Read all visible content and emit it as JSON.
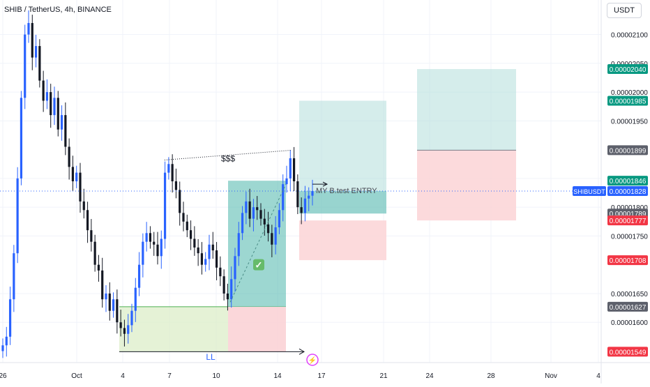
{
  "header": {
    "title": "SHIB / TetherUS, 4h, BINANCE",
    "currency_button": "USDT"
  },
  "colors": {
    "up": "#2962ff",
    "down": "#131722",
    "grid": "#f0f3fa",
    "target_fill": "#b2dfdb",
    "stop_fill": "#fbd3d6",
    "trade_fill": "#4db6ac",
    "demand_fill": "#dcedc8",
    "badge_green": "#089981",
    "badge_red": "#f23645",
    "badge_gray": "#5d606b",
    "badge_blue": "#2962ff"
  },
  "chart_data": {
    "type": "candlestick",
    "y_tick_labels": [
      "0.00002100",
      "0.00002050",
      "0.00002000",
      "0.00001950",
      "0.00001850",
      "0.00001800",
      "0.00001750",
      "0.00001650",
      "0.00001600"
    ],
    "y_tick_values": [
      2.1e-05,
      2.05e-05,
      2e-05,
      1.95e-05,
      1.85e-05,
      1.8e-05,
      1.75e-05,
      1.65e-05,
      1.6e-05
    ],
    "x_tick_labels": [
      "26",
      "Oct",
      "4",
      "7",
      "10",
      "14",
      "17",
      "21",
      "24",
      "28",
      "Nov",
      "4"
    ],
    "ylim": [
      1.53e-05,
      2.16e-05
    ],
    "annotations": {
      "liquidity": "$$$",
      "low": "LL",
      "entry": "MY B.test ENTRY"
    },
    "price_badges": [
      {
        "text": "0.00002040",
        "value": 2.04e-05,
        "kind": "green"
      },
      {
        "text": "0.00001985",
        "value": 1.985e-05,
        "kind": "green"
      },
      {
        "text": "0.00001899",
        "value": 1.899e-05,
        "kind": "gray"
      },
      {
        "text": "0.00001846",
        "value": 1.846e-05,
        "kind": "green"
      },
      {
        "text": "0.00001828",
        "value": 1.828e-05,
        "kind": "blue"
      },
      {
        "text": "0.00001789",
        "value": 1.789e-05,
        "kind": "gray"
      },
      {
        "text": "0.00001777",
        "value": 1.777e-05,
        "kind": "red"
      },
      {
        "text": "0.00001708",
        "value": 1.708e-05,
        "kind": "red"
      },
      {
        "text": "0.00001627",
        "value": 1.627e-05,
        "kind": "gray"
      },
      {
        "text": "0.00001549",
        "value": 1.549e-05,
        "kind": "red"
      }
    ],
    "symbol_tag": "SHIBUSDT",
    "candles_close": [
      1.56e-05,
      1.575e-05,
      1.64e-05,
      1.72e-05,
      1.85e-05,
      1.99e-05,
      2.1e-05,
      2.12e-05,
      2.06e-05,
      2.08e-05,
      2.02e-05,
      1.985e-05,
      2e-05,
      1.96e-05,
      1.99e-05,
      1.935e-05,
      1.96e-05,
      1.905e-05,
      1.87e-05,
      1.845e-05,
      1.86e-05,
      1.81e-05,
      1.795e-05,
      1.76e-05,
      1.74e-05,
      1.7e-05,
      1.69e-05,
      1.64e-05,
      1.65e-05,
      1.62e-05,
      1.64e-05,
      1.6e-05,
      1.59e-05,
      1.58e-05,
      1.595e-05,
      1.62e-05,
      1.66e-05,
      1.7e-05,
      1.74e-05,
      1.755e-05,
      1.74e-05,
      1.735e-05,
      1.715e-05,
      1.745e-05,
      1.86e-05,
      1.875e-05,
      1.845e-05,
      1.83e-05,
      1.79e-05,
      1.775e-05,
      1.76e-05,
      1.745e-05,
      1.73e-05,
      1.72e-05,
      1.7e-05,
      1.71e-05,
      1.735e-05,
      1.725e-05,
      1.695e-05,
      1.68e-05,
      1.65e-05,
      1.64e-05,
      1.675e-05,
      1.715e-05,
      1.755e-05,
      1.79e-05,
      1.81e-05,
      1.78e-05,
      1.8e-05,
      1.795e-05,
      1.78e-05,
      1.77e-05,
      1.755e-05,
      1.735e-05,
      1.765e-05,
      1.795e-05,
      1.84e-05,
      1.85e-05,
      1.885e-05,
      1.845e-05,
      1.8e-05,
      1.79e-05,
      1.815e-05,
      1.82e-05,
      1.828e-05
    ]
  }
}
